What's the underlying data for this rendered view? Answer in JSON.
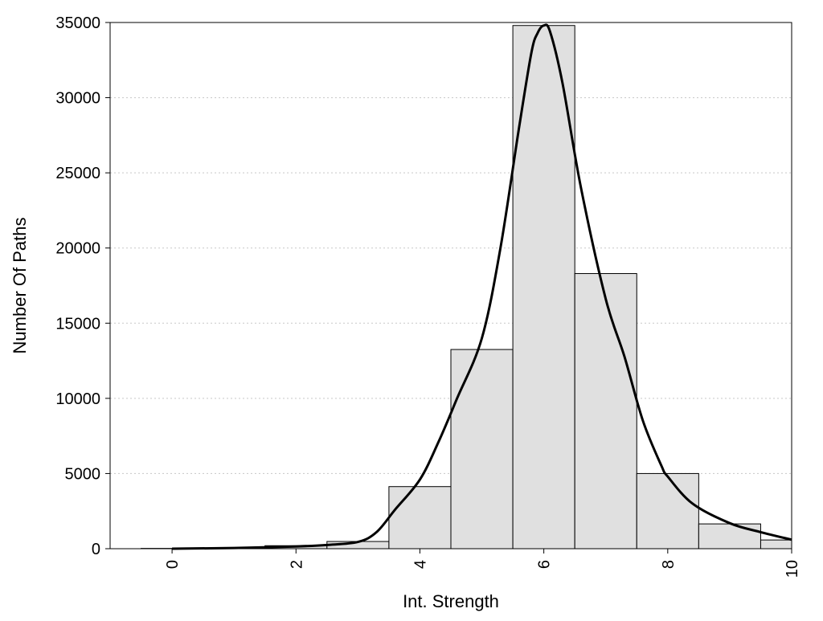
{
  "chart_data": {
    "type": "bar",
    "xlabel": "Int. Strength",
    "ylabel": "Number Of Paths",
    "xlim": [
      -1,
      10
    ],
    "ylim": [
      0,
      35000
    ],
    "x_ticks": [
      0,
      2,
      4,
      6,
      8,
      10
    ],
    "x_tick_labels": [
      "0",
      "2",
      "4",
      "6",
      "8",
      "10"
    ],
    "y_ticks": [
      0,
      5000,
      10000,
      15000,
      20000,
      25000,
      30000,
      35000
    ],
    "y_tick_labels": [
      "0",
      "5000",
      "10000",
      "15000",
      "20000",
      "25000",
      "30000",
      "35000"
    ],
    "grid": "horizontal dotted",
    "bin_width": 1,
    "bins": [
      {
        "center": 0,
        "value": 20
      },
      {
        "center": 1,
        "value": 60
      },
      {
        "center": 2,
        "value": 200
      },
      {
        "center": 3,
        "value": 480
      },
      {
        "center": 4,
        "value": 4130
      },
      {
        "center": 5,
        "value": 13250
      },
      {
        "center": 6,
        "value": 34800
      },
      {
        "center": 7,
        "value": 18300
      },
      {
        "center": 8,
        "value": 5000
      },
      {
        "center": 9,
        "value": 1650
      },
      {
        "center": 10,
        "value": 580
      }
    ],
    "density_curve": {
      "x": [
        0,
        1,
        2,
        2.5,
        3,
        3.3,
        3.6,
        4,
        4.3,
        4.6,
        5,
        5.3,
        5.6,
        5.8,
        5.9,
        6,
        6.1,
        6.3,
        6.6,
        7,
        7.3,
        7.6,
        7.9,
        8,
        8.4,
        9,
        9.5,
        10
      ],
      "y": [
        0,
        50,
        150,
        250,
        450,
        1100,
        2600,
        4600,
        7100,
        10000,
        14000,
        20000,
        28000,
        33000,
        34300,
        34800,
        34400,
        31000,
        24000,
        16600,
        12800,
        8500,
        5500,
        4800,
        3000,
        1700,
        1100,
        600
      ],
      "color": "#000000"
    },
    "bar_fill": "#e0e0e0",
    "bar_stroke": "#000000"
  }
}
